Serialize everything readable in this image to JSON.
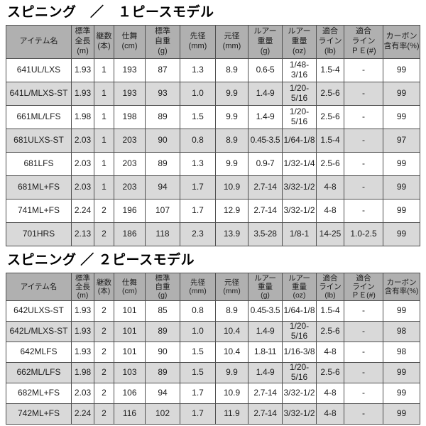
{
  "colors": {
    "header_bg": "#b0b0b0",
    "row_white_bg": "#ffffff",
    "row_gray_bg": "#d9d9d9",
    "border": "#4f4f4f",
    "text": "#1c1c1c",
    "title_text": "#000000"
  },
  "columns": [
    {
      "key": "item_name",
      "label": "アイテム名",
      "width": 92
    },
    {
      "key": "length_m",
      "label": "標準\n全長\n(m)",
      "width": 32
    },
    {
      "key": "sections",
      "label": "継数\n(本)",
      "width": 28
    },
    {
      "key": "closed_cm",
      "label": "仕舞\n(cm)",
      "width": 44
    },
    {
      "key": "weight_g",
      "label": "標準\n自重\n(g)",
      "width": 49
    },
    {
      "key": "tip_dia_mm",
      "label": "先径\n(mm)",
      "width": 50
    },
    {
      "key": "butt_dia_mm",
      "label": "元径\n(mm)",
      "width": 46
    },
    {
      "key": "lure_wt_g",
      "label": "ルアー\n重量\n(g)",
      "width": 48
    },
    {
      "key": "lure_wt_oz",
      "label": "ルアー\n重量\n(oz)",
      "width": 48
    },
    {
      "key": "line_lb",
      "label": "適合\nライン\n(lb)",
      "width": 39
    },
    {
      "key": "line_pe",
      "label": "適合\nライン\nＰＥ(#)",
      "width": 55
    },
    {
      "key": "carbon_pct",
      "label": "カーボン\n含有率(%)",
      "width": 52
    }
  ],
  "tables": [
    {
      "title": "スピニング　／　１ピースモデル",
      "rows": [
        [
          "641UL/LXS",
          "1.93",
          "1",
          "193",
          "87",
          "1.3",
          "8.9",
          "0.6-5",
          "1/48-3/16",
          "1.5-4",
          "-",
          "99"
        ],
        [
          "641L/MLXS-ST",
          "1.93",
          "1",
          "193",
          "93",
          "1.0",
          "9.9",
          "1.4-9",
          "1/20-5/16",
          "2.5-6",
          "-",
          "99"
        ],
        [
          "661ML/LFS",
          "1.98",
          "1",
          "198",
          "89",
          "1.5",
          "9.9",
          "1.4-9",
          "1/20-5/16",
          "2.5-6",
          "-",
          "99"
        ],
        [
          "681ULXS-ST",
          "2.03",
          "1",
          "203",
          "90",
          "0.8",
          "8.9",
          "0.45-3.5",
          "1/64-1/8",
          "1.5-4",
          "-",
          "97"
        ],
        [
          "681LFS",
          "2.03",
          "1",
          "203",
          "89",
          "1.3",
          "9.9",
          "0.9-7",
          "1/32-1/4",
          "2.5-6",
          "-",
          "99"
        ],
        [
          "681ML+FS",
          "2.03",
          "1",
          "203",
          "94",
          "1.7",
          "10.9",
          "2.7-14",
          "3/32-1/2",
          "4-8",
          "-",
          "99"
        ],
        [
          "741ML+FS",
          "2.24",
          "2",
          "196",
          "107",
          "1.7",
          "12.9",
          "2.7-14",
          "3/32-1/2",
          "4-8",
          "-",
          "99"
        ],
        [
          "701HRS",
          "2.13",
          "2",
          "186",
          "118",
          "2.3",
          "13.9",
          "3.5-28",
          "1/8-1",
          "14-25",
          "1.0-2.5",
          "99"
        ]
      ]
    },
    {
      "title": "スピニング ／ ２ピースモデル",
      "rows": [
        [
          "642ULXS-ST",
          "1.93",
          "2",
          "101",
          "85",
          "0.8",
          "8.9",
          "0.45-3.5",
          "1/64-1/8",
          "1.5-4",
          "-",
          "99"
        ],
        [
          "642L/MLXS-ST",
          "1.93",
          "2",
          "101",
          "89",
          "1.0",
          "10.4",
          "1.4-9",
          "1/20-5/16",
          "2.5-6",
          "-",
          "98"
        ],
        [
          "642MLFS",
          "1.93",
          "2",
          "101",
          "90",
          "1.5",
          "10.4",
          "1.8-11",
          "1/16-3/8",
          "4-8",
          "-",
          "98"
        ],
        [
          "662ML/LFS",
          "1.98",
          "2",
          "103",
          "89",
          "1.5",
          "9.9",
          "1.4-9",
          "1/20-5/16",
          "2.5-6",
          "-",
          "99"
        ],
        [
          "682ML+FS",
          "2.03",
          "2",
          "106",
          "94",
          "1.7",
          "10.9",
          "2.7-14",
          "3/32-1/2",
          "4-8",
          "-",
          "99"
        ],
        [
          "742ML+FS",
          "2.24",
          "2",
          "116",
          "102",
          "1.7",
          "11.9",
          "2.7-14",
          "3/32-1/2",
          "4-8",
          "-",
          "99"
        ]
      ]
    }
  ]
}
